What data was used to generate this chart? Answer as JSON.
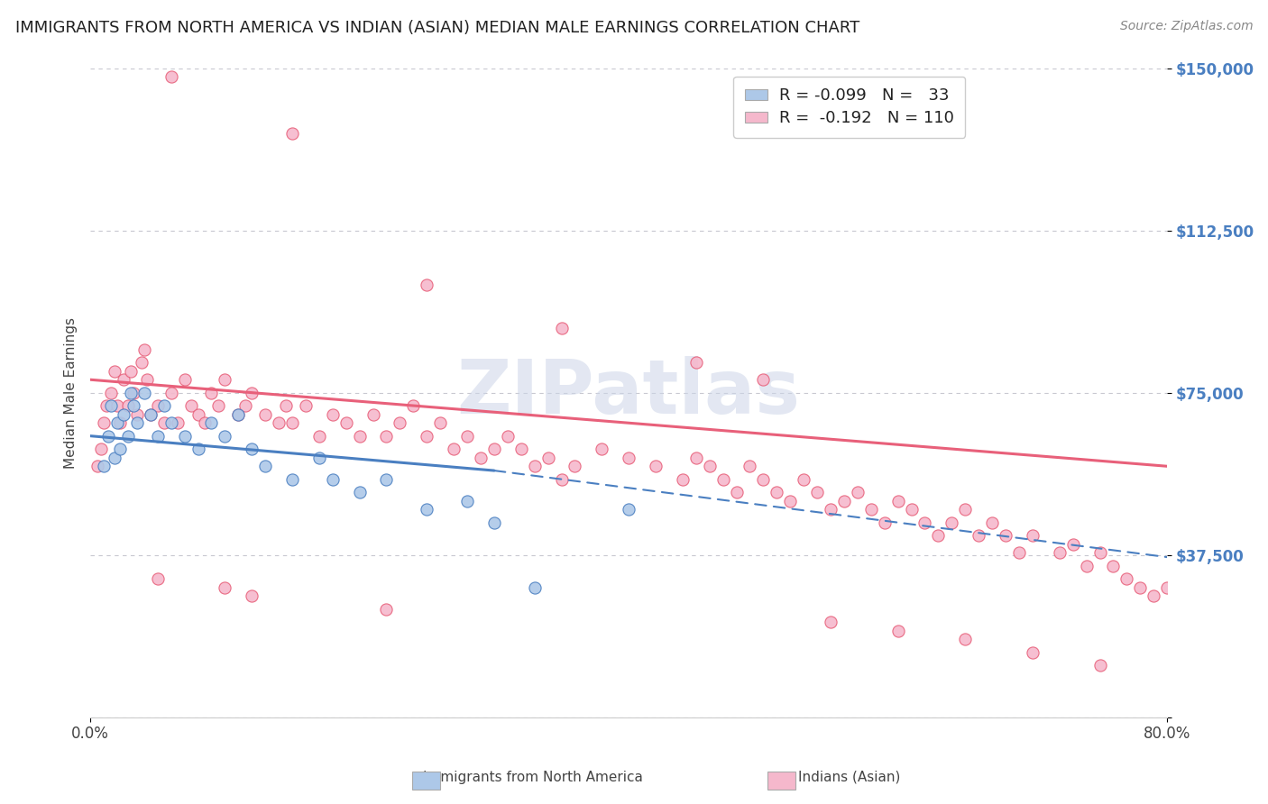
{
  "title": "IMMIGRANTS FROM NORTH AMERICA VS INDIAN (ASIAN) MEDIAN MALE EARNINGS CORRELATION CHART",
  "source": "Source: ZipAtlas.com",
  "ylabel": "Median Male Earnings",
  "xlim": [
    0.0,
    80.0
  ],
  "ylim": [
    0,
    150000
  ],
  "yticks": [
    0,
    37500,
    75000,
    112500,
    150000
  ],
  "ytick_labels": [
    "",
    "$37,500",
    "$75,000",
    "$112,500",
    "$150,000"
  ],
  "xticks": [
    0.0,
    80.0
  ],
  "xtick_labels": [
    "0.0%",
    "80.0%"
  ],
  "color_blue": "#adc8e8",
  "color_pink": "#f5b8cc",
  "line_blue": "#4a7fc1",
  "line_pink": "#e8607a",
  "legend_r1": "R = -0.099   N =   33",
  "legend_r2": "R =  -0.192   N = 110",
  "title_fontsize": 13,
  "tick_fontsize": 12,
  "watermark_text": "ZIPatlas",
  "blue_scatter_x": [
    1.0,
    1.3,
    1.5,
    1.8,
    2.0,
    2.2,
    2.5,
    2.8,
    3.0,
    3.2,
    3.5,
    4.0,
    4.5,
    5.0,
    5.5,
    6.0,
    7.0,
    8.0,
    9.0,
    10.0,
    11.0,
    12.0,
    13.0,
    15.0,
    17.0,
    18.0,
    20.0,
    22.0,
    25.0,
    28.0,
    30.0,
    33.0,
    40.0
  ],
  "blue_scatter_y": [
    58000,
    65000,
    72000,
    60000,
    68000,
    62000,
    70000,
    65000,
    75000,
    72000,
    68000,
    75000,
    70000,
    65000,
    72000,
    68000,
    65000,
    62000,
    68000,
    65000,
    70000,
    62000,
    58000,
    55000,
    60000,
    55000,
    52000,
    55000,
    48000,
    50000,
    45000,
    30000,
    48000
  ],
  "pink_scatter_x": [
    0.5,
    0.8,
    1.0,
    1.2,
    1.5,
    1.8,
    2.0,
    2.2,
    2.5,
    2.8,
    3.0,
    3.2,
    3.5,
    3.8,
    4.0,
    4.2,
    4.5,
    5.0,
    5.5,
    6.0,
    6.5,
    7.0,
    7.5,
    8.0,
    8.5,
    9.0,
    9.5,
    10.0,
    11.0,
    11.5,
    12.0,
    13.0,
    14.0,
    14.5,
    15.0,
    16.0,
    17.0,
    18.0,
    19.0,
    20.0,
    21.0,
    22.0,
    23.0,
    24.0,
    25.0,
    26.0,
    27.0,
    28.0,
    29.0,
    30.0,
    31.0,
    32.0,
    33.0,
    34.0,
    35.0,
    36.0,
    38.0,
    40.0,
    42.0,
    44.0,
    45.0,
    46.0,
    47.0,
    48.0,
    49.0,
    50.0,
    51.0,
    52.0,
    53.0,
    54.0,
    55.0,
    56.0,
    57.0,
    58.0,
    59.0,
    60.0,
    61.0,
    62.0,
    63.0,
    64.0,
    65.0,
    66.0,
    67.0,
    68.0,
    69.0,
    70.0,
    72.0,
    73.0,
    74.0,
    75.0,
    76.0,
    77.0,
    78.0,
    79.0,
    6.0,
    15.0,
    25.0,
    35.0,
    45.0,
    50.0,
    5.0,
    10.0,
    12.0,
    22.0,
    55.0,
    60.0,
    65.0,
    70.0,
    75.0,
    80.0
  ],
  "pink_scatter_y": [
    58000,
    62000,
    68000,
    72000,
    75000,
    80000,
    72000,
    68000,
    78000,
    72000,
    80000,
    75000,
    70000,
    82000,
    85000,
    78000,
    70000,
    72000,
    68000,
    75000,
    68000,
    78000,
    72000,
    70000,
    68000,
    75000,
    72000,
    78000,
    70000,
    72000,
    75000,
    70000,
    68000,
    72000,
    68000,
    72000,
    65000,
    70000,
    68000,
    65000,
    70000,
    65000,
    68000,
    72000,
    65000,
    68000,
    62000,
    65000,
    60000,
    62000,
    65000,
    62000,
    58000,
    60000,
    55000,
    58000,
    62000,
    60000,
    58000,
    55000,
    60000,
    58000,
    55000,
    52000,
    58000,
    55000,
    52000,
    50000,
    55000,
    52000,
    48000,
    50000,
    52000,
    48000,
    45000,
    50000,
    48000,
    45000,
    42000,
    45000,
    48000,
    42000,
    45000,
    42000,
    38000,
    42000,
    38000,
    40000,
    35000,
    38000,
    35000,
    32000,
    30000,
    28000,
    148000,
    135000,
    100000,
    90000,
    82000,
    78000,
    32000,
    30000,
    28000,
    25000,
    22000,
    20000,
    18000,
    15000,
    12000,
    30000
  ]
}
